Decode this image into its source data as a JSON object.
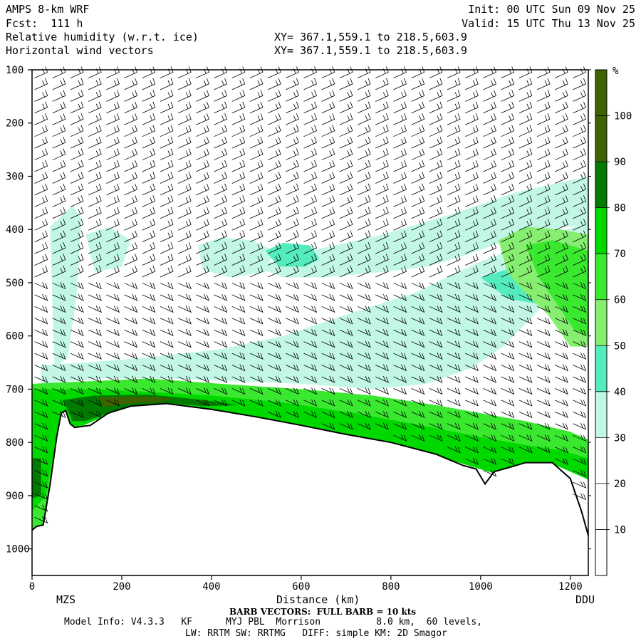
{
  "header": {
    "model": "AMPS 8-km WRF",
    "forecast": "Fcst:  111 h",
    "field1": "Relative humidity (w.r.t. ice)",
    "field2": "Horizontal wind vectors",
    "init": "Init: 00 UTC Sun 09 Nov 25",
    "valid": "Valid: 15 UTC Thu 13 Nov 25",
    "xy1": "XY= 367.1,559.1 to 218.5,603.9",
    "xy2": "XY= 367.1,559.1 to 218.5,603.9"
  },
  "footer": {
    "barb_note": "BARB VECTORS:  FULL BARB = 10 kts",
    "model_info": "Model Info: V4.3.3   KF      MYJ PBL  Morrison          8.0 km,  60 levels,",
    "physics": "LW: RRTM SW: RRTMG   DIFF: simple KM: 2D Smagor"
  },
  "chart_data": {
    "type": "heatmap",
    "title": "Relative humidity (w.r.t. ice) cross-section",
    "xlabel": "Distance (km)",
    "xlim": [
      0,
      1240
    ],
    "x_ticks": [
      0,
      200,
      400,
      600,
      800,
      1000,
      1200
    ],
    "x_endpoint_labels": {
      "left": "MZS",
      "right": "DDU"
    },
    "ylim": [
      1050,
      100
    ],
    "y_ticks": [
      100,
      200,
      300,
      400,
      500,
      600,
      700,
      800,
      900,
      1000
    ],
    "y_axis_reversed": true,
    "colorbar": {
      "unit": "%",
      "levels": [
        10,
        20,
        30,
        40,
        50,
        60,
        70,
        80,
        90,
        100
      ],
      "colors": [
        "#ffffff",
        "#ffffff",
        "#ffffff",
        "#c2f7e6",
        "#54ecbe",
        "#86ee70",
        "#3ae830",
        "#00d800",
        "#007a00",
        "#3f6200"
      ]
    },
    "terrain_pressure": [
      {
        "x": 0,
        "p": 965
      },
      {
        "x": 10,
        "p": 958
      },
      {
        "x": 25,
        "p": 955
      },
      {
        "x": 40,
        "p": 880
      },
      {
        "x": 55,
        "p": 790
      },
      {
        "x": 65,
        "p": 745
      },
      {
        "x": 75,
        "p": 740
      },
      {
        "x": 85,
        "p": 765
      },
      {
        "x": 95,
        "p": 772
      },
      {
        "x": 130,
        "p": 768
      },
      {
        "x": 170,
        "p": 745
      },
      {
        "x": 220,
        "p": 732
      },
      {
        "x": 300,
        "p": 727
      },
      {
        "x": 400,
        "p": 738
      },
      {
        "x": 500,
        "p": 752
      },
      {
        "x": 600,
        "p": 768
      },
      {
        "x": 700,
        "p": 785
      },
      {
        "x": 800,
        "p": 800
      },
      {
        "x": 900,
        "p": 822
      },
      {
        "x": 960,
        "p": 843
      },
      {
        "x": 990,
        "p": 850
      },
      {
        "x": 1010,
        "p": 878
      },
      {
        "x": 1030,
        "p": 855
      },
      {
        "x": 1060,
        "p": 848
      },
      {
        "x": 1100,
        "p": 838
      },
      {
        "x": 1160,
        "p": 838
      },
      {
        "x": 1200,
        "p": 868
      },
      {
        "x": 1225,
        "p": 930
      },
      {
        "x": 1240,
        "p": 975
      }
    ],
    "humidity_regions": [
      {
        "level": 40,
        "points": [
          [
            20,
            655
          ],
          [
            120,
            650
          ],
          [
            260,
            640
          ],
          [
            420,
            625
          ],
          [
            560,
            600
          ],
          [
            700,
            560
          ],
          [
            850,
            520
          ],
          [
            1000,
            460
          ],
          [
            1130,
            420
          ],
          [
            1240,
            385
          ],
          [
            1240,
            470
          ],
          [
            1180,
            500
          ],
          [
            1120,
            560
          ],
          [
            1050,
            620
          ],
          [
            980,
            660
          ],
          [
            880,
            690
          ],
          [
            760,
            700
          ],
          [
            600,
            690
          ],
          [
            450,
            685
          ],
          [
            300,
            680
          ],
          [
            150,
            680
          ],
          [
            20,
            690
          ]
        ]
      },
      {
        "level": 40,
        "points": [
          [
            40,
            395
          ],
          [
            90,
            355
          ],
          [
            110,
            380
          ],
          [
            100,
            520
          ],
          [
            80,
            640
          ],
          [
            50,
            660
          ]
        ]
      },
      {
        "level": 40,
        "points": [
          [
            500,
            470
          ],
          [
            620,
            440
          ],
          [
            780,
            410
          ],
          [
            940,
            370
          ],
          [
            1080,
            330
          ],
          [
            1240,
            300
          ],
          [
            1240,
            390
          ],
          [
            1150,
            400
          ],
          [
            1060,
            420
          ],
          [
            960,
            450
          ],
          [
            880,
            470
          ],
          [
            780,
            480
          ],
          [
            650,
            490
          ],
          [
            560,
            490
          ]
        ]
      },
      {
        "level": 40,
        "points": [
          [
            370,
            430
          ],
          [
            420,
            415
          ],
          [
            490,
            420
          ],
          [
            540,
            440
          ],
          [
            520,
            480
          ],
          [
            440,
            490
          ],
          [
            380,
            475
          ]
        ]
      },
      {
        "level": 40,
        "points": [
          [
            120,
            410
          ],
          [
            170,
            395
          ],
          [
            220,
            420
          ],
          [
            200,
            470
          ],
          [
            140,
            480
          ]
        ]
      },
      {
        "level": 50,
        "points": [
          [
            1000,
            490
          ],
          [
            1080,
            470
          ],
          [
            1160,
            450
          ],
          [
            1240,
            430
          ],
          [
            1240,
            470
          ],
          [
            1180,
            520
          ],
          [
            1130,
            540
          ],
          [
            1060,
            530
          ]
        ]
      },
      {
        "level": 50,
        "points": [
          [
            520,
            440
          ],
          [
            560,
            425
          ],
          [
            620,
            430
          ],
          [
            640,
            455
          ],
          [
            610,
            470
          ],
          [
            550,
            470
          ]
        ]
      },
      {
        "level": 60,
        "points": [
          [
            1040,
            420
          ],
          [
            1100,
            395
          ],
          [
            1180,
            400
          ],
          [
            1240,
            410
          ],
          [
            1240,
            620
          ],
          [
            1200,
            620
          ],
          [
            1150,
            560
          ],
          [
            1100,
            520
          ],
          [
            1060,
            480
          ]
        ]
      },
      {
        "level": 70,
        "points": [
          [
            1100,
            430
          ],
          [
            1160,
            420
          ],
          [
            1240,
            440
          ],
          [
            1240,
            600
          ],
          [
            1210,
            590
          ],
          [
            1170,
            540
          ],
          [
            1130,
            490
          ]
        ]
      },
      {
        "level": 70,
        "points": [
          [
            0,
            690
          ],
          [
            260,
            680
          ],
          [
            420,
            690
          ],
          [
            600,
            700
          ],
          [
            760,
            712
          ],
          [
            900,
            730
          ],
          [
            1000,
            745
          ],
          [
            1100,
            760
          ],
          [
            1200,
            780
          ],
          [
            1240,
            795
          ],
          [
            1240,
            855
          ],
          [
            1160,
            838
          ],
          [
            1100,
            838
          ],
          [
            1030,
            855
          ],
          [
            900,
            822
          ],
          [
            700,
            785
          ],
          [
            500,
            752
          ],
          [
            300,
            727
          ],
          [
            170,
            745
          ],
          [
            95,
            772
          ],
          [
            55,
            790
          ],
          [
            25,
            955
          ],
          [
            0,
            965
          ]
        ]
      },
      {
        "level": 80,
        "points": [
          [
            0,
            700
          ],
          [
            140,
            700
          ],
          [
            260,
            705
          ],
          [
            400,
            712
          ],
          [
            560,
            725
          ],
          [
            720,
            745
          ],
          [
            880,
            770
          ],
          [
            1000,
            790
          ],
          [
            1100,
            805
          ],
          [
            1180,
            815
          ],
          [
            1240,
            830
          ],
          [
            1240,
            870
          ],
          [
            1160,
            840
          ],
          [
            1030,
            858
          ],
          [
            900,
            825
          ],
          [
            700,
            788
          ],
          [
            500,
            755
          ],
          [
            300,
            730
          ],
          [
            170,
            748
          ],
          [
            95,
            775
          ],
          [
            55,
            792
          ],
          [
            30,
            900
          ],
          [
            0,
            930
          ]
        ]
      },
      {
        "level": 90,
        "points": [
          [
            70,
            720
          ],
          [
            140,
            712
          ],
          [
            260,
            710
          ],
          [
            380,
            720
          ],
          [
            460,
            730
          ],
          [
            380,
            732
          ],
          [
            300,
            726
          ],
          [
            220,
            732
          ],
          [
            170,
            745
          ],
          [
            120,
            760
          ],
          [
            90,
            760
          ]
        ]
      },
      {
        "level": 100,
        "points": [
          [
            150,
            716
          ],
          [
            250,
            714
          ],
          [
            320,
            718
          ],
          [
            280,
            724
          ],
          [
            200,
            728
          ],
          [
            160,
            734
          ]
        ]
      },
      {
        "level": 90,
        "points": [
          [
            0,
            830
          ],
          [
            20,
            830
          ],
          [
            20,
            900
          ],
          [
            0,
            905
          ]
        ]
      }
    ]
  }
}
